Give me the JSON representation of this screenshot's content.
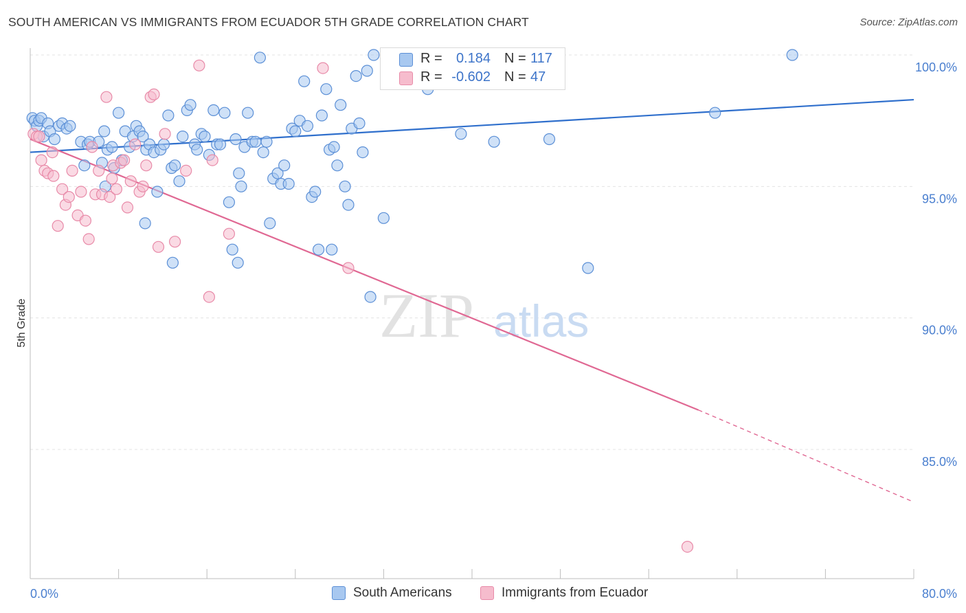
{
  "title": "SOUTH AMERICAN VS IMMIGRANTS FROM ECUADOR 5TH GRADE CORRELATION CHART",
  "source": "Source: ZipAtlas.com",
  "watermark": {
    "zip": "ZIP",
    "atlas": "atlas"
  },
  "legend_top": {
    "rows": [
      {
        "r_label": "R =",
        "r_value": "0.184",
        "n_label": "N =",
        "n_value": "117"
      },
      {
        "r_label": "R =",
        "r_value": "-0.602",
        "n_label": "N =",
        "n_value": "47"
      }
    ]
  },
  "legend_bottom": {
    "series1": "South Americans",
    "series2": "Immigrants from Ecuador"
  },
  "colors": {
    "blue_fill": "#a8c8f0",
    "blue_stroke": "#5b8fd6",
    "blue_line": "#2f6fcc",
    "pink_fill": "#f6bccd",
    "pink_stroke": "#e88aa8",
    "pink_line": "#e06893",
    "tick_text": "#4a7fcf",
    "grid": "#e3e3e3"
  },
  "chart_data": {
    "type": "scatter",
    "ylabel": "5th Grade",
    "xlim": [
      0,
      80
    ],
    "ylim": [
      80.5,
      100.8
    ],
    "x_ticks": [
      "0.0%",
      "80.0%"
    ],
    "y_ticks": [
      {
        "value": 100,
        "label": "100.0%"
      },
      {
        "value": 95,
        "label": "95.0%"
      },
      {
        "value": 90,
        "label": "90.0%"
      },
      {
        "value": 85,
        "label": "85.0%"
      }
    ],
    "grid": "horizontal dashed",
    "legend_position": "top-center and bottom",
    "series": [
      {
        "name": "South Americans",
        "color": "blue",
        "trend": {
          "x": [
            0,
            80
          ],
          "y": [
            96.3,
            98.3
          ],
          "style": "solid"
        },
        "points": [
          [
            0.2,
            97.6
          ],
          [
            0.4,
            97.5
          ],
          [
            0.6,
            97.3
          ],
          [
            0.8,
            97.5
          ],
          [
            1.0,
            97.6
          ],
          [
            1.2,
            96.9
          ],
          [
            1.6,
            97.4
          ],
          [
            1.8,
            97.1
          ],
          [
            2.2,
            96.8
          ],
          [
            2.6,
            97.3
          ],
          [
            2.9,
            97.4
          ],
          [
            3.3,
            97.2
          ],
          [
            3.6,
            97.3
          ],
          [
            4.6,
            96.7
          ],
          [
            4.9,
            95.8
          ],
          [
            5.2,
            96.6
          ],
          [
            5.4,
            96.7
          ],
          [
            6.2,
            96.7
          ],
          [
            6.5,
            95.9
          ],
          [
            6.7,
            97.1
          ],
          [
            7.0,
            96.4
          ],
          [
            7.4,
            96.5
          ],
          [
            7.6,
            95.7
          ],
          [
            8.0,
            97.8
          ],
          [
            8.3,
            96.0
          ],
          [
            8.6,
            97.1
          ],
          [
            9.0,
            96.5
          ],
          [
            9.3,
            96.9
          ],
          [
            9.6,
            97.3
          ],
          [
            9.9,
            97.1
          ],
          [
            10.2,
            96.9
          ],
          [
            10.5,
            96.4
          ],
          [
            10.8,
            96.6
          ],
          [
            11.2,
            96.3
          ],
          [
            11.5,
            94.8
          ],
          [
            11.8,
            96.4
          ],
          [
            12.1,
            96.6
          ],
          [
            12.5,
            97.7
          ],
          [
            12.8,
            95.7
          ],
          [
            13.1,
            95.8
          ],
          [
            13.5,
            95.2
          ],
          [
            13.8,
            96.9
          ],
          [
            14.2,
            97.9
          ],
          [
            14.5,
            98.1
          ],
          [
            14.9,
            96.6
          ],
          [
            15.1,
            96.4
          ],
          [
            15.5,
            97.0
          ],
          [
            15.8,
            96.9
          ],
          [
            16.2,
            96.2
          ],
          [
            16.6,
            97.9
          ],
          [
            16.9,
            96.6
          ],
          [
            17.2,
            96.6
          ],
          [
            17.6,
            97.8
          ],
          [
            18.0,
            94.4
          ],
          [
            18.3,
            92.6
          ],
          [
            18.6,
            96.8
          ],
          [
            18.9,
            95.5
          ],
          [
            19.1,
            95.0
          ],
          [
            19.4,
            96.5
          ],
          [
            19.7,
            97.8
          ],
          [
            20.1,
            96.7
          ],
          [
            20.4,
            96.7
          ],
          [
            20.8,
            99.9
          ],
          [
            21.1,
            96.3
          ],
          [
            21.4,
            96.7
          ],
          [
            21.7,
            93.6
          ],
          [
            22.0,
            95.3
          ],
          [
            22.4,
            95.5
          ],
          [
            22.7,
            95.1
          ],
          [
            23.0,
            95.8
          ],
          [
            23.4,
            95.1
          ],
          [
            23.7,
            97.2
          ],
          [
            24.0,
            97.1
          ],
          [
            24.4,
            97.5
          ],
          [
            24.8,
            99.0
          ],
          [
            25.1,
            97.3
          ],
          [
            25.5,
            94.6
          ],
          [
            25.8,
            94.8
          ],
          [
            26.1,
            92.6
          ],
          [
            26.4,
            97.7
          ],
          [
            26.8,
            98.7
          ],
          [
            27.1,
            96.4
          ],
          [
            27.5,
            96.5
          ],
          [
            27.8,
            95.8
          ],
          [
            28.1,
            98.1
          ],
          [
            28.5,
            95.0
          ],
          [
            28.8,
            94.3
          ],
          [
            29.1,
            97.2
          ],
          [
            29.5,
            99.2
          ],
          [
            29.8,
            97.4
          ],
          [
            30.1,
            96.3
          ],
          [
            30.5,
            99.4
          ],
          [
            30.8,
            90.8
          ],
          [
            31.1,
            100.0
          ],
          [
            32.0,
            93.8
          ],
          [
            32.5,
            98.9
          ],
          [
            33.0,
            99.5
          ],
          [
            33.6,
            100.0
          ],
          [
            35.0,
            99.8
          ],
          [
            36.0,
            98.7
          ],
          [
            37.5,
            99.8
          ],
          [
            39.0,
            97.0
          ],
          [
            42.0,
            96.7
          ],
          [
            45.0,
            99.5
          ],
          [
            47.0,
            96.8
          ],
          [
            50.5,
            91.9
          ],
          [
            62.0,
            97.8
          ],
          [
            69.0,
            100.0
          ],
          [
            6.8,
            95.0
          ],
          [
            10.4,
            93.6
          ],
          [
            12.9,
            92.1
          ],
          [
            18.8,
            92.1
          ],
          [
            27.3,
            92.6
          ]
        ]
      },
      {
        "name": "Immigrants from Ecuador",
        "color": "pink",
        "trend": {
          "x": [
            0,
            60.5
          ],
          "y": [
            96.8,
            86.5
          ],
          "style": "solid",
          "dashed_to": {
            "x": 80,
            "y": 83.0
          }
        },
        "points": [
          [
            0.3,
            97.0
          ],
          [
            0.6,
            96.9
          ],
          [
            1.0,
            96.0
          ],
          [
            1.3,
            95.6
          ],
          [
            1.6,
            95.5
          ],
          [
            2.0,
            96.3
          ],
          [
            2.5,
            93.5
          ],
          [
            2.9,
            94.9
          ],
          [
            3.2,
            94.3
          ],
          [
            3.5,
            94.6
          ],
          [
            3.8,
            95.6
          ],
          [
            4.3,
            93.9
          ],
          [
            4.6,
            94.8
          ],
          [
            5.0,
            93.7
          ],
          [
            5.3,
            93.0
          ],
          [
            5.6,
            96.5
          ],
          [
            5.9,
            94.7
          ],
          [
            6.2,
            95.6
          ],
          [
            6.5,
            94.7
          ],
          [
            6.9,
            98.4
          ],
          [
            7.2,
            94.6
          ],
          [
            7.5,
            95.8
          ],
          [
            7.8,
            94.9
          ],
          [
            8.2,
            95.9
          ],
          [
            8.5,
            96.0
          ],
          [
            8.8,
            94.2
          ],
          [
            9.1,
            95.2
          ],
          [
            9.5,
            96.6
          ],
          [
            9.9,
            94.8
          ],
          [
            10.2,
            95.0
          ],
          [
            10.5,
            95.8
          ],
          [
            10.9,
            98.4
          ],
          [
            11.2,
            98.5
          ],
          [
            11.6,
            92.7
          ],
          [
            12.2,
            97.0
          ],
          [
            13.1,
            92.9
          ],
          [
            14.1,
            95.6
          ],
          [
            15.3,
            99.6
          ],
          [
            16.2,
            90.8
          ],
          [
            16.5,
            96.0
          ],
          [
            18.0,
            93.2
          ],
          [
            26.5,
            99.5
          ],
          [
            28.8,
            91.9
          ],
          [
            59.5,
            81.3
          ],
          [
            0.8,
            96.9
          ],
          [
            2.1,
            95.4
          ],
          [
            7.4,
            95.3
          ]
        ]
      }
    ]
  }
}
